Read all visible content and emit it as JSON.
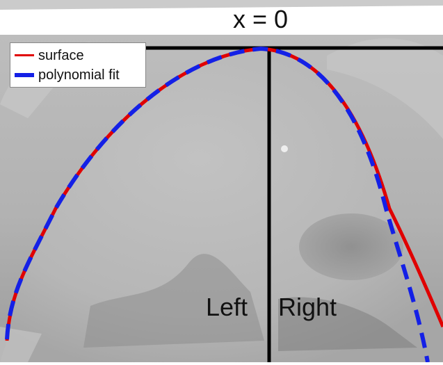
{
  "top_label": "x = 0",
  "legend": {
    "items": [
      {
        "label": "surface",
        "color": "#e00000",
        "style": "solid"
      },
      {
        "label": "polynomial fit",
        "color": "#1420e6",
        "style": "dashed"
      }
    ]
  },
  "region_labels": {
    "left": "Left",
    "right": "Right"
  },
  "colors": {
    "surface": "#e00000",
    "fit": "#1420e6",
    "axis_lines": "#000000",
    "background_sem": "#b4b4b4"
  }
}
